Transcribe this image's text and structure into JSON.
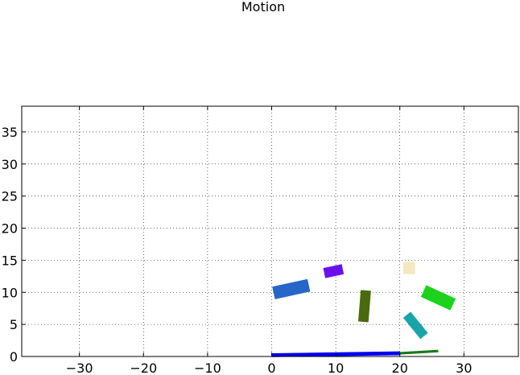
{
  "chart_data": {
    "type": "scatter",
    "title": "Motion",
    "xlabel": "",
    "ylabel": "",
    "xlim": [
      -39,
      38.5
    ],
    "ylim": [
      0,
      39
    ],
    "grid": true,
    "legend": "none",
    "x_ticks": [
      -30,
      -20,
      -10,
      0,
      10,
      20,
      30
    ],
    "x_tick_labels": [
      "−30",
      "−20",
      "−10",
      "0",
      "10",
      "20",
      "30"
    ],
    "y_ticks": [
      0,
      5,
      10,
      15,
      20,
      25,
      30,
      35
    ],
    "y_tick_labels": [
      "0",
      "5",
      "10",
      "15",
      "20",
      "25",
      "30",
      "35"
    ],
    "series": [
      {
        "x": [
          0,
          20
        ],
        "y": [
          0.2,
          0.5
        ],
        "width": 0.6,
        "color": "#0000ee"
      },
      {
        "x": [
          20,
          26
        ],
        "y": [
          0.5,
          0.85
        ],
        "width": 0.4,
        "color": "#1a7a1a"
      },
      {
        "x": [
          0.3,
          5.8
        ],
        "y": [
          9.9,
          11.1
        ],
        "width": 2.0,
        "color": "#2566c7"
      },
      {
        "x": [
          8.2,
          11.1
        ],
        "y": [
          13.0,
          13.6
        ],
        "width": 1.6,
        "color": "#6a0ff0"
      },
      {
        "x": [
          14.7,
          14.3
        ],
        "y": [
          10.3,
          5.4
        ],
        "width": 1.6,
        "color": "#4a6a10"
      },
      {
        "x": [
          20.5,
          22.4
        ],
        "y": [
          13.8,
          13.8
        ],
        "width": 1.9,
        "color": "#f3e8c0"
      },
      {
        "x": [
          23.7,
          28.3
        ],
        "y": [
          10.2,
          8.1
        ],
        "width": 2.0,
        "color": "#1cd21c"
      },
      {
        "x": [
          21.1,
          23.8
        ],
        "y": [
          6.5,
          3.2
        ],
        "width": 1.5,
        "color": "#18a4a8"
      }
    ]
  }
}
